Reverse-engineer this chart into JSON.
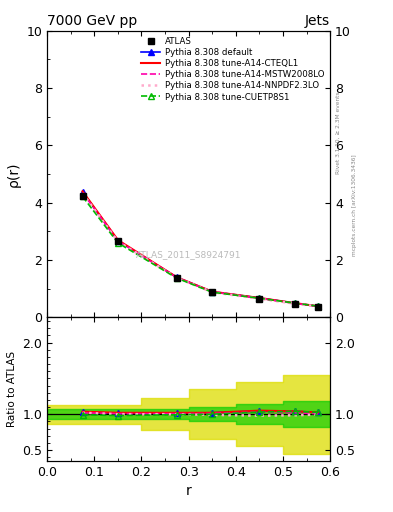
{
  "title": "7000 GeV pp",
  "title_right": "Jets",
  "xlabel": "r",
  "ylabel_main": "ρ(r)",
  "ylabel_ratio": "Ratio to ATLAS",
  "watermark": "ATLAS_2011_S8924791",
  "right_label_top": "Rivet 3.1.10, ≥ 2.3M events",
  "right_label_bottom": "mcplots.cern.ch [arXiv:1306.3436]",
  "x_values": [
    0.075,
    0.15,
    0.275,
    0.35,
    0.45,
    0.525,
    0.575
  ],
  "atlas_y": [
    4.25,
    2.65,
    1.38,
    0.88,
    0.65,
    0.48,
    0.38
  ],
  "default_y": [
    4.38,
    2.68,
    1.4,
    0.9,
    0.68,
    0.5,
    0.39
  ],
  "cteql1_y": [
    4.4,
    2.7,
    1.4,
    0.9,
    0.68,
    0.5,
    0.39
  ],
  "mstw_y": [
    4.35,
    2.67,
    1.39,
    0.89,
    0.67,
    0.49,
    0.38
  ],
  "nnpdf_y": [
    4.33,
    2.65,
    1.38,
    0.88,
    0.65,
    0.48,
    0.38
  ],
  "cuetp_y": [
    4.22,
    2.6,
    1.37,
    0.88,
    0.67,
    0.5,
    0.39
  ],
  "ratio_default": [
    1.03,
    1.012,
    1.015,
    1.02,
    1.045,
    1.04,
    1.025
  ],
  "ratio_cteql1": [
    1.035,
    1.02,
    1.02,
    1.02,
    1.05,
    1.04,
    1.025
  ],
  "ratio_mstw": [
    1.02,
    1.008,
    1.007,
    1.01,
    1.03,
    1.02,
    1.005
  ],
  "ratio_nnpdf": [
    1.02,
    1.0,
    1.0,
    0.99,
    0.98,
    0.985,
    0.995
  ],
  "ratio_cuetp": [
    0.993,
    0.981,
    0.993,
    1.0,
    1.03,
    1.04,
    1.025
  ],
  "band_edges": [
    0.0,
    0.1,
    0.2,
    0.3,
    0.4,
    0.5,
    0.55,
    0.6
  ],
  "green_upper": [
    1.07,
    1.07,
    1.07,
    1.1,
    1.14,
    1.18,
    1.18
  ],
  "green_lower": [
    0.93,
    0.93,
    0.93,
    0.9,
    0.86,
    0.82,
    0.82
  ],
  "yellow_upper": [
    1.13,
    1.13,
    1.22,
    1.35,
    1.45,
    1.55,
    1.55
  ],
  "yellow_lower": [
    0.87,
    0.87,
    0.78,
    0.65,
    0.55,
    0.45,
    0.45
  ],
  "color_atlas": "#000000",
  "color_default": "#0000ff",
  "color_cteql1": "#ff0000",
  "color_mstw": "#ff00aa",
  "color_nnpdf": "#ffaacc",
  "color_cuetp": "#00bb00",
  "color_green_band": "#00cc00",
  "color_yellow_band": "#dddd00",
  "ylim_main": [
    0,
    10
  ],
  "ylim_ratio": [
    0.35,
    2.35
  ],
  "yticks_main": [
    0,
    2,
    4,
    6,
    8,
    10
  ],
  "yticks_ratio": [
    0.5,
    1.0,
    2.0
  ],
  "xlim": [
    0.0,
    0.6
  ]
}
